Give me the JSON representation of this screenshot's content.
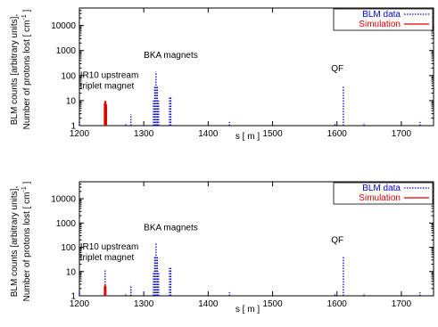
{
  "chart_data": [
    {
      "type": "bar",
      "panel": "top",
      "xlabel": "s [ m ]",
      "ylabel_line1": "BLM counts [arbitrary units],",
      "ylabel_line2_pre": "Number of protons lost [ cm",
      "ylabel_line2_sup": "-1",
      "ylabel_line2_post": " ]",
      "xlim": [
        1200,
        1750
      ],
      "ylim": [
        1,
        50000
      ],
      "yscale": "log",
      "xticks": [
        1200,
        1300,
        1400,
        1500,
        1600,
        1700
      ],
      "yticks": [
        1,
        10,
        100,
        1000,
        10000
      ],
      "annotations": [
        {
          "text": "BKA magnets",
          "x": 1300,
          "y": 500
        },
        {
          "text": "IR10 upstream",
          "x": 1201,
          "y": 80
        },
        {
          "text": "triplet magnet",
          "x": 1201,
          "y": 30
        },
        {
          "text": "QF",
          "x": 1591,
          "y": 150
        }
      ],
      "legend_position": "top-right",
      "series": [
        {
          "name": "BLM data",
          "color": "#0000cc",
          "style": "dotted",
          "points": [
            {
              "x": 1200,
              "y": 1.5
            },
            {
              "x": 1272,
              "y": 1.3
            },
            {
              "x": 1280,
              "y": 2.8
            },
            {
              "x": 1315,
              "y": 10
            },
            {
              "x": 1317,
              "y": 40
            },
            {
              "x": 1319,
              "y": 140
            },
            {
              "x": 1321,
              "y": 40
            },
            {
              "x": 1323,
              "y": 10
            },
            {
              "x": 1340,
              "y": 14
            },
            {
              "x": 1342,
              "y": 14
            },
            {
              "x": 1433,
              "y": 1.4
            },
            {
              "x": 1597,
              "y": 1.3
            },
            {
              "x": 1610,
              "y": 40
            },
            {
              "x": 1642,
              "y": 1.3
            },
            {
              "x": 1729,
              "y": 1.4
            }
          ]
        },
        {
          "name": "Simulation",
          "color": "#dd0000",
          "style": "solid",
          "points": [
            {
              "x": 1239,
              "y": 8
            },
            {
              "x": 1240,
              "y": 10
            },
            {
              "x": 1241,
              "y": 9
            },
            {
              "x": 1242,
              "y": 7
            }
          ]
        }
      ]
    },
    {
      "type": "bar",
      "panel": "bottom",
      "xlabel": "s [ m ]",
      "ylabel_line1": "BLM counts [arbitrary units],",
      "ylabel_line2_pre": "Number of protons lost [ cm",
      "ylabel_line2_sup": "-1",
      "ylabel_line2_post": " ]",
      "xlim": [
        1200,
        1750
      ],
      "ylim": [
        1,
        50000
      ],
      "yscale": "log",
      "xticks": [
        1200,
        1300,
        1400,
        1500,
        1600,
        1700
      ],
      "yticks": [
        1,
        10,
        100,
        1000,
        10000
      ],
      "annotations": [
        {
          "text": "BKA magnets",
          "x": 1300,
          "y": 500
        },
        {
          "text": "IR10 upstream",
          "x": 1201,
          "y": 80
        },
        {
          "text": "triplet magnet",
          "x": 1201,
          "y": 30
        },
        {
          "text": "QF",
          "x": 1591,
          "y": 150
        }
      ],
      "legend_position": "top-right",
      "series": [
        {
          "name": "BLM data",
          "color": "#0000cc",
          "style": "dotted",
          "points": [
            {
              "x": 1200,
              "y": 1.5
            },
            {
              "x": 1240,
              "y": 12
            },
            {
              "x": 1272,
              "y": 1.3
            },
            {
              "x": 1280,
              "y": 2.8
            },
            {
              "x": 1315,
              "y": 10
            },
            {
              "x": 1317,
              "y": 40
            },
            {
              "x": 1319,
              "y": 140
            },
            {
              "x": 1321,
              "y": 40
            },
            {
              "x": 1323,
              "y": 10
            },
            {
              "x": 1340,
              "y": 14
            },
            {
              "x": 1342,
              "y": 14
            },
            {
              "x": 1433,
              "y": 1.4
            },
            {
              "x": 1597,
              "y": 1.3
            },
            {
              "x": 1610,
              "y": 40
            },
            {
              "x": 1642,
              "y": 1.3
            },
            {
              "x": 1729,
              "y": 1.4
            }
          ]
        },
        {
          "name": "Simulation",
          "color": "#dd0000",
          "style": "solid",
          "points": [
            {
              "x": 1239,
              "y": 2.5
            },
            {
              "x": 1240,
              "y": 3
            },
            {
              "x": 1241,
              "y": 2.5
            }
          ]
        }
      ]
    }
  ]
}
